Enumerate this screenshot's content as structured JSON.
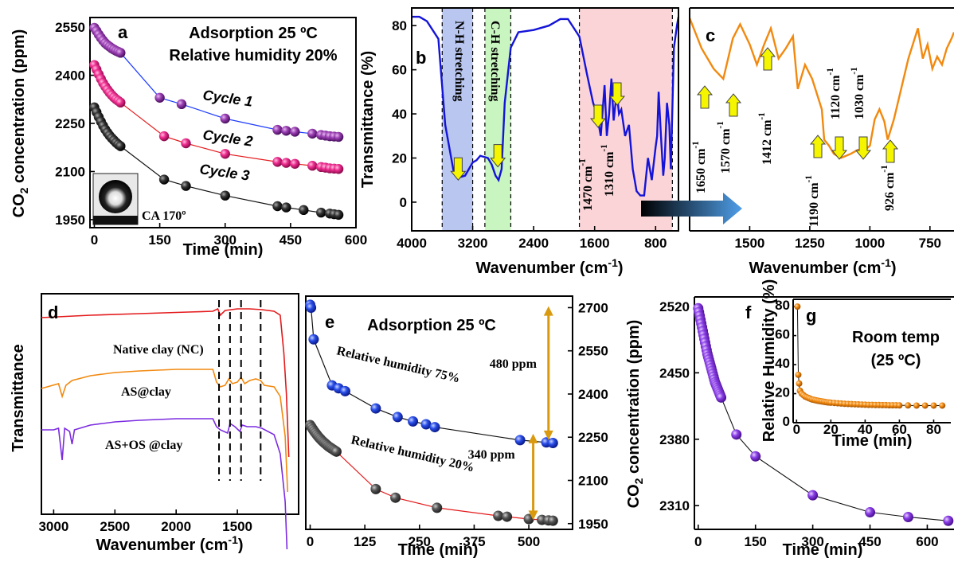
{
  "chart_data": [
    {
      "id": "a",
      "panel_label": "a",
      "type": "scatter",
      "xlabel": "Time (min)",
      "ylabel": "CO2 concentration (ppm)",
      "xlim": [
        -10,
        600
      ],
      "ylim": [
        1925,
        2580
      ],
      "xticks": [
        0,
        150,
        300,
        450,
        600
      ],
      "yticks": [
        1950,
        2100,
        2250,
        2400,
        2550
      ],
      "annotations": [
        "Adsorption 25 ºC",
        "Relative humidity 20%",
        "CA 170º"
      ],
      "series": [
        {
          "name": "Cycle 1",
          "color": "#7b2d8e",
          "x": [
            0,
            5,
            10,
            15,
            20,
            25,
            30,
            35,
            40,
            45,
            50,
            55,
            60,
            150,
            200,
            300,
            420,
            440,
            460,
            500,
            520,
            530,
            540,
            550,
            560
          ],
          "y": [
            2548,
            2538,
            2527,
            2517,
            2508,
            2500,
            2494,
            2489,
            2484,
            2480,
            2476,
            2473,
            2470,
            2330,
            2310,
            2265,
            2230,
            2227,
            2224,
            2218,
            2214,
            2212,
            2210,
            2209,
            2208
          ]
        },
        {
          "name": "Cycle 2",
          "color": "#e6197f",
          "x": [
            0,
            5,
            10,
            15,
            20,
            25,
            30,
            35,
            40,
            45,
            50,
            55,
            60,
            160,
            210,
            300,
            420,
            440,
            460,
            500,
            520,
            530,
            540,
            550,
            560
          ],
          "y": [
            2432,
            2418,
            2403,
            2389,
            2376,
            2365,
            2355,
            2346,
            2338,
            2331,
            2325,
            2320,
            2315,
            2210,
            2188,
            2155,
            2130,
            2127,
            2124,
            2118,
            2114,
            2112,
            2110,
            2109,
            2108
          ]
        },
        {
          "name": "Cycle 3",
          "color": "#111111",
          "x": [
            0,
            5,
            10,
            15,
            20,
            25,
            30,
            35,
            40,
            45,
            50,
            55,
            60,
            160,
            210,
            300,
            420,
            440,
            480,
            520,
            540,
            550,
            560
          ],
          "y": [
            2300,
            2285,
            2270,
            2256,
            2243,
            2231,
            2221,
            2212,
            2204,
            2197,
            2190,
            2184,
            2179,
            2075,
            2055,
            2025,
            1992,
            1988,
            1980,
            1972,
            1969,
            1967,
            1965
          ]
        }
      ]
    },
    {
      "id": "b",
      "panel_label": "b",
      "type": "line",
      "xlabel": "Wavenumber (cm-1)",
      "ylabel": "Transmittance (%)",
      "xlim": [
        4000,
        500
      ],
      "ylim": [
        -13,
        88
      ],
      "xticks": [
        4000,
        3200,
        2400,
        1600,
        800
      ],
      "yticks": [
        0,
        20,
        40,
        60,
        80
      ],
      "color": "#1414d8",
      "x": [
        4000,
        3900,
        3800,
        3650,
        3560,
        3450,
        3400,
        3300,
        3250,
        3200,
        3150,
        3100,
        3000,
        2950,
        2900,
        2860,
        2820,
        2780,
        2700,
        2600,
        2400,
        2200,
        2050,
        1950,
        1800,
        1700,
        1620,
        1570,
        1520,
        1470,
        1440,
        1410,
        1380,
        1350,
        1310,
        1280,
        1250,
        1200,
        1150,
        1100,
        1050,
        1000,
        950,
        900,
        850,
        800,
        780,
        760,
        730,
        700,
        680,
        650,
        620,
        600,
        560,
        520,
        500
      ],
      "y": [
        84,
        84,
        82,
        74,
        35,
        14,
        11,
        12,
        15,
        18,
        19,
        21,
        20,
        17,
        12,
        10,
        15,
        45,
        70,
        77,
        78,
        80,
        83,
        83,
        75,
        58,
        45,
        40,
        30,
        53,
        30,
        40,
        56,
        37,
        50,
        40,
        42,
        30,
        35,
        15,
        5,
        3,
        3,
        20,
        10,
        25,
        30,
        50,
        30,
        12,
        20,
        45,
        35,
        15,
        70,
        80,
        84
      ],
      "annotations": [
        "N-H stretching",
        "C-H stretching",
        "1470 cm-1",
        "1310 cm-1"
      ]
    },
    {
      "id": "c",
      "panel_label": "c",
      "type": "line",
      "xlabel": "Wavenumber (cm-1)",
      "xlim": [
        1750,
        650
      ],
      "xticks": [
        1500,
        1250,
        1000,
        750
      ],
      "color": "#f2890f",
      "x": [
        1750,
        1700,
        1650,
        1610,
        1570,
        1540,
        1500,
        1470,
        1440,
        1412,
        1380,
        1350,
        1320,
        1300,
        1270,
        1240,
        1200,
        1190,
        1170,
        1150,
        1120,
        1080,
        1050,
        1030,
        1000,
        980,
        960,
        940,
        926,
        900,
        870,
        840,
        800,
        780,
        760,
        740,
        720,
        700,
        680,
        660,
        650
      ],
      "y": [
        85,
        70,
        60,
        55,
        75,
        82,
        72,
        62,
        72,
        80,
        65,
        70,
        76,
        50,
        62,
        55,
        40,
        25,
        22,
        18,
        16,
        18,
        20,
        19,
        22,
        35,
        40,
        34,
        25,
        35,
        50,
        65,
        80,
        65,
        72,
        60,
        66,
        62,
        70,
        75,
        78
      ],
      "annotations": [
        "1650 cm-1",
        "1570 cm-1",
        "1412 cm-1",
        "1190 cm-1",
        "1120 cm-1",
        "1030 cm-1",
        "926 cm-1"
      ]
    },
    {
      "id": "d",
      "panel_label": "d",
      "type": "line",
      "xlabel": "Wavenumber (cm-1)",
      "ylabel": "Transmittance",
      "xlim": [
        3100,
        1000
      ],
      "xticks": [
        3000,
        2500,
        2000,
        1500
      ],
      "series": [
        {
          "name": "Native clay (NC)",
          "color": "#e41a1c"
        },
        {
          "name": "AS@clay",
          "color": "#f2890f"
        },
        {
          "name": "AS+OS @clay",
          "color": "#7b2be0"
        }
      ],
      "dashed_lines_x": [
        1650,
        1560,
        1470,
        1310
      ]
    },
    {
      "id": "e",
      "panel_label": "e",
      "type": "scatter",
      "xlabel": "Time (min)",
      "ylabel": "CO2 concentration (ppm)",
      "xlim": [
        -10,
        600
      ],
      "ylim": [
        1930,
        2740
      ],
      "xticks": [
        0,
        125,
        250,
        375,
        500
      ],
      "yticks": [
        1950,
        2100,
        2250,
        2400,
        2550,
        2700
      ],
      "annotations": [
        "Adsorption 25 ºC",
        "480 ppm",
        "340 ppm"
      ],
      "series": [
        {
          "name": "Relative humidity 75%",
          "color": "#2244dd",
          "x": [
            0,
            2,
            8,
            50,
            65,
            80,
            150,
            200,
            235,
            265,
            285,
            480,
            540,
            555
          ],
          "y": [
            2710,
            2700,
            2590,
            2430,
            2420,
            2410,
            2350,
            2320,
            2305,
            2295,
            2285,
            2240,
            2232,
            2230
          ]
        },
        {
          "name": "Relative humidity 20%",
          "color": "#444444",
          "x": [
            0,
            3,
            6,
            9,
            12,
            15,
            18,
            21,
            24,
            27,
            30,
            33,
            36,
            39,
            42,
            45,
            48,
            51,
            54,
            57,
            60,
            150,
            195,
            290,
            430,
            450,
            500,
            530,
            545,
            555
          ],
          "y": [
            2292,
            2285,
            2278,
            2271,
            2265,
            2259,
            2253,
            2248,
            2243,
            2238,
            2234,
            2230,
            2226,
            2222,
            2218,
            2215,
            2212,
            2209,
            2206,
            2203,
            2200,
            2070,
            2040,
            2005,
            1977,
            1974,
            1966,
            1963,
            1961,
            1960
          ]
        }
      ]
    },
    {
      "id": "f",
      "panel_label": "f",
      "type": "scatter",
      "xlabel": "Time (min)",
      "ylim": [
        2285,
        2530
      ],
      "xlim": [
        -10,
        670
      ],
      "xticks": [
        0,
        150,
        300,
        450,
        600
      ],
      "yticks": [
        2310,
        2380,
        2450,
        2520
      ],
      "color": "#8a2be2",
      "x": [
        0,
        2,
        4,
        6,
        8,
        10,
        12,
        14,
        16,
        18,
        20,
        22,
        24,
        26,
        28,
        30,
        32,
        34,
        36,
        38,
        40,
        42,
        44,
        46,
        48,
        50,
        52,
        54,
        56,
        58,
        60,
        100,
        150,
        300,
        450,
        550,
        655
      ],
      "y": [
        2518,
        2514,
        2510,
        2506,
        2502,
        2498,
        2494,
        2490,
        2486,
        2482,
        2478,
        2474,
        2470,
        2467,
        2464,
        2461,
        2458,
        2455,
        2452,
        2449,
        2446,
        2443,
        2440,
        2438,
        2436,
        2434,
        2432,
        2430,
        2428,
        2426,
        2424,
        2385,
        2362,
        2321,
        2303,
        2298,
        2294
      ]
    },
    {
      "id": "g",
      "panel_label": "g",
      "type": "scatter",
      "xlabel": "Time (min)",
      "ylabel": "Relative Humidity (%)",
      "xlim": [
        -2,
        90
      ],
      "ylim": [
        0,
        85
      ],
      "xticks": [
        0,
        20,
        40,
        60,
        80
      ],
      "yticks": [
        0,
        20,
        40,
        60,
        80
      ],
      "annotations": [
        "Room temp",
        "(25 ºC)"
      ],
      "color": "#f2890f",
      "x": [
        0.5,
        1,
        1.5,
        2,
        3,
        4,
        5,
        6,
        7,
        8,
        9,
        10,
        11,
        12,
        13,
        14,
        15,
        16,
        17,
        18,
        19,
        20,
        22,
        24,
        26,
        28,
        30,
        32,
        34,
        36,
        38,
        40,
        42,
        44,
        46,
        48,
        50,
        52,
        54,
        56,
        58,
        60,
        65,
        70,
        75,
        80,
        85
      ],
      "y": [
        80,
        33,
        27,
        22,
        20,
        19,
        18,
        17.5,
        17,
        16.5,
        16,
        15.8,
        15.5,
        15.2,
        15,
        14.8,
        14.6,
        14.4,
        14.2,
        14,
        13.9,
        13.8,
        13.6,
        13.4,
        13.2,
        13,
        12.9,
        12.8,
        12.7,
        12.6,
        12.5,
        12.4,
        12.3,
        12.3,
        12.2,
        12.2,
        12.1,
        12.1,
        12,
        12,
        12,
        11.9,
        11.9,
        11.8,
        11.8,
        11.8,
        11.8
      ]
    }
  ]
}
